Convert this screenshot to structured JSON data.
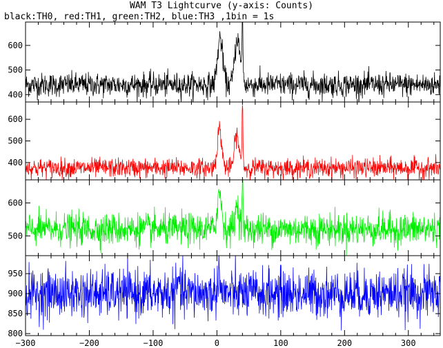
{
  "title": "WAM T3 Lightcurve (y-axis: Counts)",
  "subtitle": "black:TH0, red:TH1, green:TH2, blue:TH3 ,1bin = 1s",
  "chart_data": {
    "type": "line",
    "xlim": [
      -300,
      350
    ],
    "x_ticks": [
      -300,
      -200,
      -100,
      0,
      100,
      200,
      300
    ],
    "x_tick_labels": [
      "−300",
      "−200",
      "−100",
      "0",
      "100",
      "200",
      "300"
    ],
    "bin_seconds": 1,
    "panels": [
      {
        "series_key": "TH0",
        "color": "#000000",
        "ylim": [
          370,
          695
        ],
        "y_ticks": [
          400,
          500,
          600
        ],
        "y_tick_labels": [
          "400",
          "500",
          "600"
        ],
        "baseline": 440,
        "noise": 24,
        "features": [
          {
            "t": 5,
            "h": 190,
            "w": 4
          },
          {
            "t": 32,
            "h": 190,
            "w": 4
          },
          {
            "t": 40,
            "h": 270,
            "w": 0.8
          }
        ]
      },
      {
        "series_key": "TH1",
        "color": "#ff0000",
        "ylim": [
          320,
          680
        ],
        "y_ticks": [
          400,
          500,
          600
        ],
        "y_tick_labels": [
          "400",
          "500",
          "600"
        ],
        "baseline": 375,
        "noise": 22,
        "features": [
          {
            "t": 4,
            "h": 180,
            "w": 3.5
          },
          {
            "t": 31,
            "h": 155,
            "w": 3.5
          },
          {
            "t": 40,
            "h": 300,
            "w": 0.8
          }
        ]
      },
      {
        "series_key": "TH2",
        "color": "#00ee00",
        "ylim": [
          440,
          670
        ],
        "y_ticks": [
          500,
          600
        ],
        "y_tick_labels": [
          "500",
          "600"
        ],
        "baseline": 520,
        "noise": 24,
        "features": [
          {
            "t": 4,
            "h": 110,
            "w": 3.5
          },
          {
            "t": 32,
            "h": 75,
            "w": 3
          },
          {
            "t": 40,
            "h": 150,
            "w": 0.8
          }
        ]
      },
      {
        "series_key": "TH3",
        "color": "#0000ff",
        "ylim": [
          795,
          995
        ],
        "y_ticks": [
          800,
          850,
          900,
          950
        ],
        "y_tick_labels": [
          "800",
          "850",
          "900",
          "950"
        ],
        "baseline": 900,
        "noise": 30,
        "features": [
          {
            "t": 3,
            "h": 70,
            "w": 1.5
          },
          {
            "t": -60,
            "h": 30,
            "w": 2
          }
        ]
      }
    ]
  }
}
